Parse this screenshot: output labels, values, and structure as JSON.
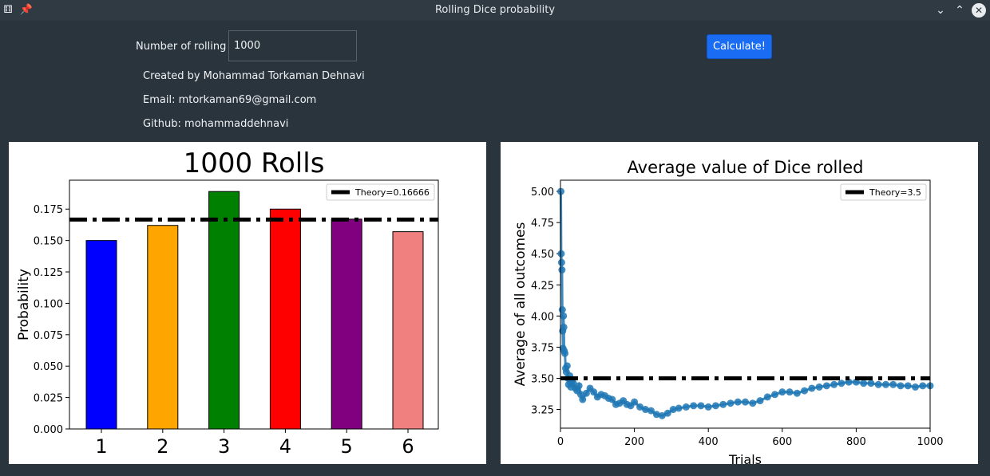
{
  "window": {
    "title": "Rolling Dice probability",
    "icons": [
      "dice-icon",
      "pin-icon"
    ],
    "controls": {
      "minimize": "⌄",
      "maximize": "⌃",
      "close": "✕"
    }
  },
  "form": {
    "rolls_label": "Number of rolling",
    "rolls_value": "1000",
    "calculate_label": "Calculate!",
    "calculate_color": "#1a6cf2"
  },
  "credits": {
    "created_by": "Created by Mohammad Torkaman Dehnavi",
    "email": "Email: mtorkaman69@gmail.com",
    "github": "Github: mohammaddehnavi"
  },
  "chart_data": [
    {
      "type": "bar",
      "title": "1000 Rolls",
      "xlabel": "",
      "ylabel": "Probability",
      "categories": [
        "1",
        "2",
        "3",
        "4",
        "5",
        "6"
      ],
      "values": [
        0.15,
        0.162,
        0.189,
        0.175,
        0.167,
        0.157
      ],
      "colors": [
        "#0000ff",
        "#ffa500",
        "#008000",
        "#ff0000",
        "#800080",
        "#f08080"
      ],
      "ylim": [
        0,
        0.198
      ],
      "yticks": [
        "0.000",
        "0.025",
        "0.050",
        "0.075",
        "0.100",
        "0.125",
        "0.150",
        "0.175"
      ],
      "ytick_values": [
        0,
        0.025,
        0.05,
        0.075,
        0.1,
        0.125,
        0.15,
        0.175
      ],
      "reference_line": {
        "value": 0.16666,
        "style": "dash-dot",
        "color": "#000000"
      },
      "legend": {
        "label": "Theory=0.16666",
        "placement": "top-right"
      }
    },
    {
      "type": "scatter",
      "title": "Average value of Dice rolled",
      "xlabel": "Trials",
      "ylabel": "Average of all outcomes",
      "xlim": [
        0,
        1000
      ],
      "ylim": [
        3.1,
        5.09
      ],
      "xticks": [
        "0",
        "200",
        "400",
        "600",
        "800",
        "1000"
      ],
      "xtick_values": [
        0,
        200,
        400,
        600,
        800,
        1000
      ],
      "yticks": [
        "3.25",
        "3.50",
        "3.75",
        "4.00",
        "4.25",
        "4.50",
        "4.75",
        "5.00"
      ],
      "ytick_values": [
        3.25,
        3.5,
        3.75,
        4.0,
        4.25,
        4.5,
        4.75,
        5.0
      ],
      "series_color": "#1f77b4",
      "x": [
        1,
        2,
        3,
        4,
        5,
        6,
        7,
        8,
        9,
        10,
        12,
        14,
        16,
        18,
        20,
        22,
        25,
        28,
        31,
        35,
        40,
        45,
        50,
        55,
        60,
        70,
        80,
        90,
        100,
        110,
        120,
        130,
        140,
        150,
        160,
        170,
        180,
        190,
        200,
        215,
        230,
        245,
        260,
        275,
        290,
        305,
        320,
        340,
        360,
        380,
        400,
        420,
        440,
        460,
        480,
        500,
        520,
        540,
        560,
        580,
        600,
        620,
        640,
        660,
        680,
        700,
        720,
        740,
        760,
        780,
        800,
        820,
        840,
        860,
        880,
        900,
        920,
        940,
        960,
        980,
        1000
      ],
      "y": [
        5.0,
        4.5,
        4.43,
        4.37,
        4.05,
        3.88,
        3.74,
        4.0,
        3.91,
        3.72,
        3.7,
        3.58,
        3.55,
        3.6,
        3.5,
        3.45,
        3.52,
        3.43,
        3.48,
        3.46,
        3.42,
        3.4,
        3.44,
        3.37,
        3.33,
        3.38,
        3.42,
        3.39,
        3.35,
        3.37,
        3.36,
        3.34,
        3.33,
        3.29,
        3.3,
        3.32,
        3.29,
        3.28,
        3.31,
        3.27,
        3.25,
        3.24,
        3.21,
        3.2,
        3.22,
        3.25,
        3.26,
        3.27,
        3.28,
        3.28,
        3.27,
        3.28,
        3.29,
        3.3,
        3.31,
        3.31,
        3.3,
        3.32,
        3.35,
        3.37,
        3.39,
        3.39,
        3.38,
        3.4,
        3.42,
        3.43,
        3.44,
        3.45,
        3.46,
        3.47,
        3.47,
        3.46,
        3.46,
        3.45,
        3.45,
        3.45,
        3.44,
        3.44,
        3.43,
        3.44,
        3.44
      ],
      "reference_line": {
        "value": 3.5,
        "style": "dash-dot",
        "color": "#000000"
      },
      "legend": {
        "label": "Theory=3.5",
        "placement": "top-right"
      }
    }
  ]
}
